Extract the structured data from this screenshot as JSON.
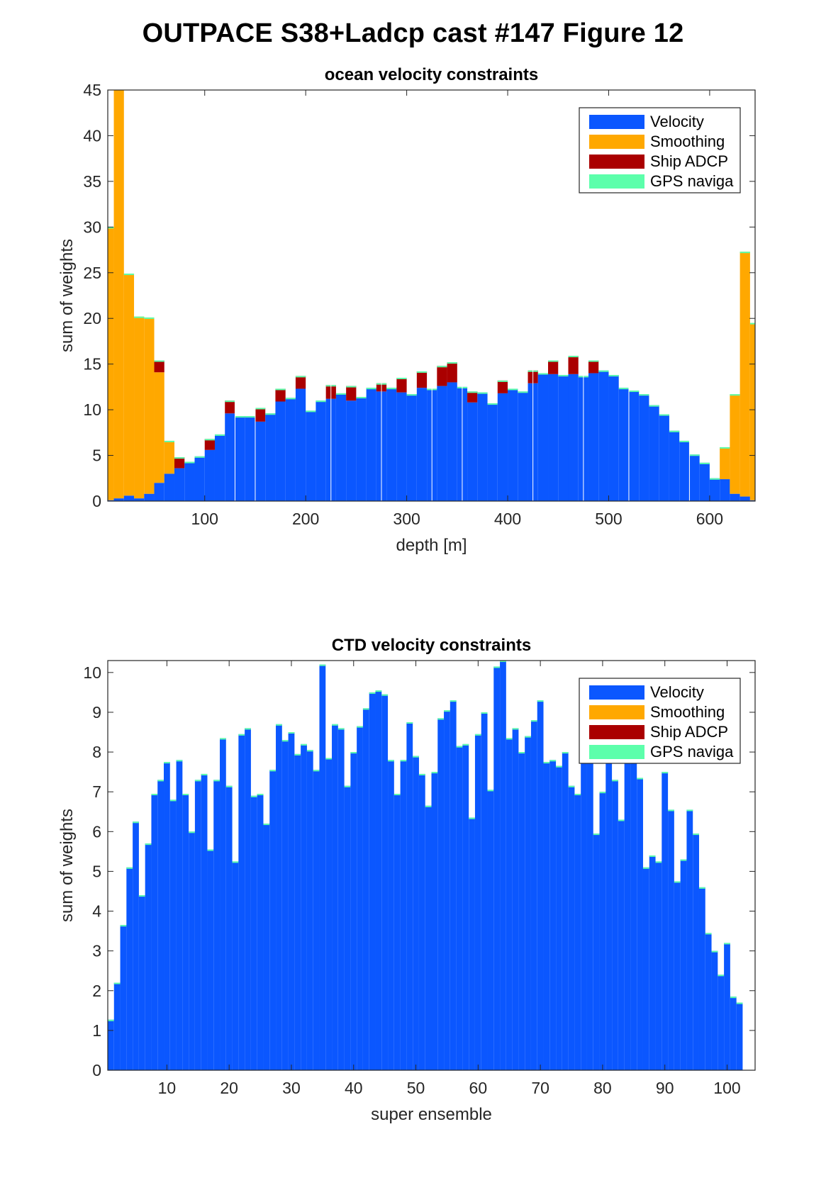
{
  "figure_title": "OUTPACE S38+Ladcp cast #147  Figure 12",
  "colors": {
    "velocity": "#0b57ff",
    "smoothing": "#ffa800",
    "ship_adcp": "#aa0000",
    "gps_navigation": "#5cffab",
    "axes": "#262626"
  },
  "chart_data": [
    {
      "type": "bar",
      "stacked": true,
      "title": "ocean velocity constraints",
      "xlabel": "depth [m]",
      "ylabel": "sum of weights",
      "xlim": [
        4,
        645
      ],
      "ylim": [
        0,
        45
      ],
      "xticks": [
        100,
        200,
        300,
        400,
        500,
        600
      ],
      "yticks": [
        0,
        5,
        10,
        15,
        20,
        25,
        30,
        35,
        40,
        45
      ],
      "bin_width": 10,
      "x": [
        5,
        15,
        25,
        35,
        45,
        55,
        65,
        75,
        85,
        95,
        105,
        115,
        125,
        135,
        145,
        155,
        165,
        175,
        185,
        195,
        205,
        215,
        225,
        235,
        245,
        255,
        265,
        275,
        285,
        295,
        305,
        315,
        325,
        335,
        345,
        355,
        365,
        375,
        385,
        395,
        405,
        415,
        425,
        435,
        445,
        455,
        465,
        475,
        485,
        495,
        505,
        515,
        525,
        535,
        545,
        555,
        565,
        575,
        585,
        595,
        605,
        615,
        625,
        635,
        645
      ],
      "legend": [
        "Velocity",
        "Smoothing",
        "Ship ADCP",
        "GPS naviga"
      ],
      "legend_position": "top-right",
      "series": [
        {
          "name": "Velocity",
          "values": [
            0.1,
            0.3,
            0.6,
            0.3,
            0.8,
            2,
            3,
            3.6,
            4.3,
            4.9,
            5.6,
            7.3,
            9.6,
            9.3,
            9.3,
            8.7,
            9.6,
            10.9,
            11.3,
            12.3,
            9.9,
            11.0,
            11.2,
            11.8,
            11.0,
            11.4,
            12.4,
            12.0,
            12.4,
            11.9,
            11.7,
            12.4,
            12.3,
            12.6,
            13.0,
            12.5,
            10.8,
            11.9,
            10.7,
            11.8,
            12.3,
            12.0,
            12.9,
            14.0,
            13.9,
            13.8,
            13.9,
            13.7,
            14.0,
            14.3,
            13.8,
            12.4,
            12.1,
            11.7,
            10.5,
            9.5,
            7.7,
            6.6,
            5.1,
            4.2,
            2.5,
            2.4,
            0.8,
            0.5,
            0.1
          ]
        },
        {
          "name": "Smoothing",
          "values": [
            29.9,
            44.9,
            24.3,
            19.9,
            19.3,
            12.1,
            3.6,
            0,
            0,
            0,
            0,
            0,
            0,
            0,
            0,
            0,
            0,
            0,
            0,
            0,
            0,
            0,
            0,
            0,
            0,
            0,
            0,
            0,
            0,
            0,
            0,
            0,
            0,
            0,
            0,
            0,
            0,
            0,
            0,
            0,
            0,
            0,
            0,
            0,
            0,
            0,
            0,
            0,
            0,
            0,
            0,
            0,
            0,
            0,
            0,
            0,
            0,
            0,
            0,
            0,
            0,
            3.5,
            10.9,
            26.8,
            19.4
          ]
        },
        {
          "name": "Ship ADCP",
          "values": [
            0,
            0,
            0,
            0,
            0,
            1.3,
            0,
            1.2,
            0,
            0,
            1.2,
            0,
            1.4,
            0,
            0,
            1.5,
            0,
            1.4,
            0,
            1.4,
            0,
            0,
            1.5,
            0,
            1.6,
            0,
            0,
            0.9,
            0,
            1.6,
            0,
            1.8,
            0,
            2.2,
            2.2,
            0,
            1.2,
            0,
            0,
            1.4,
            0,
            0,
            1.4,
            0,
            1.5,
            0,
            2.0,
            0,
            1.4,
            0,
            0,
            0,
            0,
            0,
            0,
            0,
            0,
            0,
            0,
            0,
            0,
            0,
            0,
            0,
            0
          ]
        },
        {
          "name": "GPS naviga",
          "values": [
            0,
            0,
            0,
            0,
            0,
            0,
            0,
            0,
            0,
            0,
            0,
            0,
            0,
            0,
            0,
            0,
            0,
            0,
            0,
            0,
            0,
            0,
            0,
            0,
            0,
            0,
            0,
            0,
            0,
            0,
            0,
            0,
            0,
            0,
            0,
            0,
            0,
            0,
            0,
            0,
            0,
            0,
            0,
            0,
            0,
            0,
            0,
            0,
            0,
            0,
            0,
            0,
            0,
            0,
            0,
            0,
            0,
            0,
            0,
            0,
            0,
            0,
            0,
            0,
            0
          ]
        }
      ]
    },
    {
      "type": "bar",
      "stacked": true,
      "title": "CTD velocity constraints",
      "xlabel": "super ensemble",
      "ylabel": "sum of weights",
      "xlim": [
        0.5,
        104.5
      ],
      "ylim": [
        0,
        10.3
      ],
      "xticks": [
        10,
        20,
        30,
        40,
        50,
        60,
        70,
        80,
        90,
        100
      ],
      "yticks": [
        0,
        1,
        2,
        3,
        4,
        5,
        6,
        7,
        8,
        9,
        10
      ],
      "bin_width": 1,
      "legend": [
        "Velocity",
        "Smoothing",
        "Ship ADCP",
        "GPS naviga"
      ],
      "legend_position": "top-right",
      "series": [
        {
          "name": "Velocity",
          "values": [
            1.27,
            2.2,
            3.65,
            5.1,
            6.25,
            4.4,
            5.7,
            6.95,
            7.3,
            7.75,
            6.8,
            7.8,
            6.95,
            6.0,
            7.3,
            7.45,
            5.55,
            7.3,
            8.35,
            7.15,
            5.25,
            8.45,
            8.6,
            6.9,
            6.95,
            6.2,
            7.55,
            8.7,
            8.3,
            8.5,
            7.95,
            8.2,
            8.05,
            7.55,
            10.2,
            7.85,
            8.7,
            8.6,
            7.15,
            8.0,
            8.65,
            9.1,
            9.5,
            9.55,
            9.45,
            7.8,
            6.95,
            7.8,
            8.75,
            7.9,
            7.45,
            6.65,
            7.5,
            8.85,
            9.05,
            9.3,
            8.15,
            8.2,
            6.35,
            8.45,
            9.0,
            7.05,
            10.15,
            10.3,
            8.35,
            8.6,
            8.0,
            8.4,
            8.8,
            9.3,
            7.75,
            7.8,
            7.65,
            8.0,
            7.15,
            6.95,
            8.0,
            8.1,
            5.95,
            7.0,
            7.8,
            7.3,
            6.3,
            7.95,
            7.8,
            7.35,
            5.1,
            5.4,
            5.25,
            7.5,
            6.55,
            4.75,
            5.3,
            6.55,
            5.95,
            4.6,
            3.45,
            3.0,
            2.4,
            3.2,
            1.85,
            1.7
          ]
        },
        {
          "name": "Smoothing",
          "values": []
        },
        {
          "name": "Ship ADCP",
          "values": []
        },
        {
          "name": "GPS naviga",
          "values": []
        }
      ]
    }
  ]
}
